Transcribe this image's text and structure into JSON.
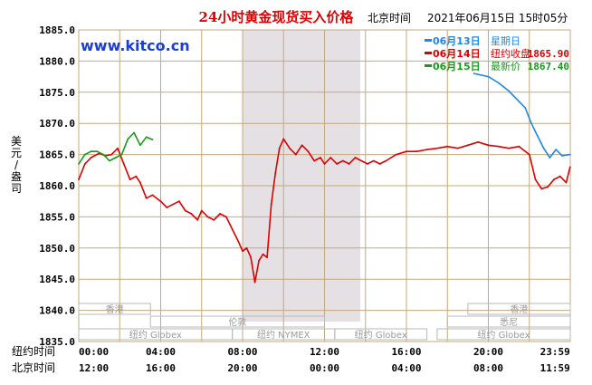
{
  "chart_data": {
    "type": "line",
    "title": "24小时黄金现货买入价格",
    "datetime": "2021年06月15日 15时05分",
    "datetime_prefix": "北京时间",
    "source": "www.kitco.cn",
    "ylabel": "美元/盎司",
    "ylim": [
      1835.0,
      1885.0
    ],
    "yticks": [
      "1885.0",
      "1880.0",
      "1875.0",
      "1870.0",
      "1865.0",
      "1860.0",
      "1855.0",
      "1850.0",
      "1845.0",
      "1840.0",
      "1835.0"
    ],
    "x_row_labels": [
      "纽约时间",
      "北京时间"
    ],
    "xticks_ny": [
      "00:00",
      "04:00",
      "08:00",
      "12:00",
      "16:00",
      "20:00",
      "23:59"
    ],
    "xticks_bj": [
      "12:00",
      "16:00",
      "20:00",
      "00:00",
      "04:00",
      "08:00",
      "11:59"
    ],
    "shaded_band": {
      "from_hour": 8.0,
      "to_hour": 13.75
    },
    "legend": [
      {
        "date": "06月13日",
        "label": "星期日",
        "value": "",
        "color": "#1e88e5"
      },
      {
        "date": "06月14日",
        "label": "纽约收盘",
        "value": "1865.90",
        "color": "#dd0000"
      },
      {
        "date": "06月15日",
        "label": "最新价",
        "value": "1867.40",
        "color": "#1a9a1a"
      }
    ],
    "sessions": [
      {
        "name": "香港",
        "rows": [
          {
            "from": 0,
            "to": 3.5
          },
          {
            "from": 19.0,
            "to": 24.0
          }
        ],
        "row": 0
      },
      {
        "name": "伦敦",
        "rows": [
          {
            "from": 3.5,
            "to": 12.0
          }
        ],
        "row": 1
      },
      {
        "name": "悉尼",
        "rows": [
          {
            "from": 18.0,
            "to": 24.0
          }
        ],
        "row": 1
      },
      {
        "name": "纽约 Globex",
        "rows": [
          {
            "from": 0,
            "to": 7.5
          }
        ],
        "row": 2
      },
      {
        "name": "纽约 NYMEX",
        "rows": [
          {
            "from": 7.5,
            "to": 12.5
          }
        ],
        "row": 2
      },
      {
        "name": "纽约 Globex",
        "rows": [
          {
            "from": 12.5,
            "to": 17.0
          }
        ],
        "row": 2
      },
      {
        "name": "纽约 Globex",
        "rows": [
          {
            "from": 17.5,
            "to": 24.0
          }
        ],
        "row": 2
      }
    ],
    "series": [
      {
        "name": "06月13日",
        "color": "#1e88e5",
        "x": [
          19.3,
          20.0,
          20.5,
          21.0,
          21.5,
          21.8,
          22.1,
          22.4,
          22.7,
          23.0,
          23.3,
          23.6,
          23.99
        ],
        "y": [
          1878.0,
          1877.5,
          1876.5,
          1875.2,
          1873.5,
          1872.5,
          1870.0,
          1868.0,
          1866.0,
          1864.5,
          1865.8,
          1864.8,
          1865.0
        ]
      },
      {
        "name": "06月14日",
        "color": "#dd0000",
        "x": [
          0.0,
          0.3,
          0.6,
          1.0,
          1.3,
          1.6,
          1.9,
          2.2,
          2.5,
          2.8,
          3.0,
          3.3,
          3.6,
          4.0,
          4.3,
          4.6,
          4.9,
          5.2,
          5.5,
          5.8,
          6.0,
          6.3,
          6.6,
          6.9,
          7.2,
          7.5,
          7.8,
          8.0,
          8.2,
          8.4,
          8.6,
          8.8,
          9.0,
          9.2,
          9.4,
          9.6,
          9.8,
          10.0,
          10.3,
          10.6,
          10.9,
          11.2,
          11.5,
          11.8,
          12.0,
          12.3,
          12.6,
          12.9,
          13.2,
          13.5,
          13.8,
          14.1,
          14.4,
          14.7,
          15.0,
          15.5,
          16.0,
          16.5,
          17.0,
          17.5,
          18.0,
          18.5,
          19.0,
          19.5,
          20.0,
          20.5,
          21.0,
          21.5,
          22.0,
          22.3,
          22.6,
          22.9,
          23.2,
          23.5,
          23.8,
          23.99
        ],
        "y": [
          1861.0,
          1863.5,
          1864.5,
          1865.2,
          1864.8,
          1865.0,
          1866.0,
          1863.5,
          1861.0,
          1861.5,
          1860.5,
          1858.0,
          1858.5,
          1857.5,
          1856.5,
          1857.0,
          1857.5,
          1856.0,
          1855.5,
          1854.5,
          1856.0,
          1855.0,
          1854.5,
          1855.5,
          1855.0,
          1853.0,
          1851.0,
          1849.5,
          1850.0,
          1848.5,
          1844.5,
          1848.0,
          1849.0,
          1848.5,
          1857.0,
          1862.0,
          1866.0,
          1867.5,
          1866.0,
          1865.0,
          1866.5,
          1865.5,
          1864.0,
          1864.5,
          1863.5,
          1864.5,
          1863.5,
          1864.0,
          1863.5,
          1864.5,
          1864.0,
          1863.5,
          1864.0,
          1863.5,
          1864.0,
          1865.0,
          1865.5,
          1865.5,
          1865.8,
          1866.0,
          1866.3,
          1866.0,
          1866.5,
          1867.0,
          1866.5,
          1866.3,
          1866.0,
          1866.3,
          1865.0,
          1861.0,
          1859.5,
          1859.8,
          1861.0,
          1861.5,
          1860.5,
          1863.0
        ]
      },
      {
        "name": "06月15日",
        "color": "#1a9a1a",
        "x": [
          0.0,
          0.3,
          0.6,
          0.9,
          1.2,
          1.5,
          1.8,
          2.1,
          2.4,
          2.7,
          3.0,
          3.3,
          3.6
        ],
        "y": [
          1863.5,
          1865.0,
          1865.5,
          1865.5,
          1865.0,
          1864.0,
          1864.5,
          1865.0,
          1867.5,
          1868.5,
          1866.5,
          1867.8,
          1867.4
        ]
      }
    ]
  }
}
